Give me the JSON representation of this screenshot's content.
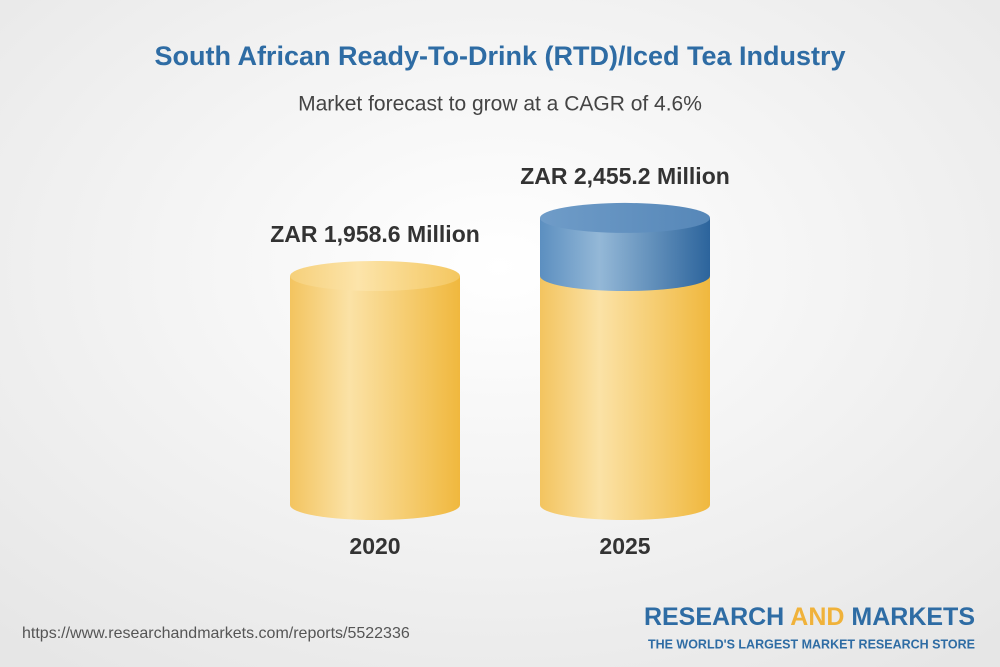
{
  "chart_data": {
    "type": "cylinder",
    "title": "South African Ready-To-Drink (RTD)/Iced Tea Industry",
    "subtitle": "Market forecast to grow at a CAGR of 4.6%",
    "categories": [
      "2020",
      "2025"
    ],
    "values": [
      1958.6,
      2455.2
    ],
    "value_labels": [
      "ZAR 1,958.6 Million",
      "ZAR 2,455.2 Million"
    ],
    "color": "#f2c25c",
    "growth_color": "#3f78ad"
  },
  "footer": {
    "url": "https://www.researchandmarkets.com/reports/5522336",
    "brand": [
      "RESEARCH",
      "AND",
      "MARKETS"
    ],
    "tagline": "THE WORLD'S LARGEST MARKET RESEARCH STORE"
  }
}
